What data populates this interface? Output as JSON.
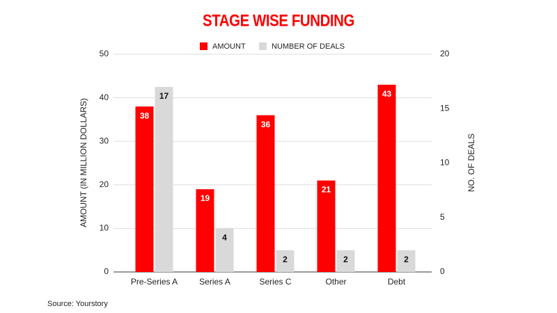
{
  "chart_data": {
    "type": "bar",
    "title": "STAGE WISE FUNDING",
    "source": "Source: Yourstory",
    "ylabel": "AMOUNT (IN MILLION DOLLARS)",
    "y2label": "NO. OF DEALS",
    "categories": [
      "Pre-Series A",
      "Series A",
      "Series C",
      "Other",
      "Debt"
    ],
    "series": [
      {
        "name": "AMOUNT",
        "color": "#ff0000",
        "values": [
          38,
          19,
          36,
          21,
          43
        ]
      },
      {
        "name": "NUMBER OF DEALS",
        "color": "#d9d9d9",
        "axis": "y2",
        "values": [
          17,
          4,
          2,
          2,
          2
        ]
      }
    ],
    "ylim": [
      0,
      50
    ],
    "yticks": [
      0,
      10,
      20,
      30,
      40,
      50
    ],
    "y2lim": [
      0,
      20
    ],
    "y2ticks": [
      0,
      5,
      10,
      15,
      20
    ],
    "grid": true,
    "legend": "top"
  }
}
